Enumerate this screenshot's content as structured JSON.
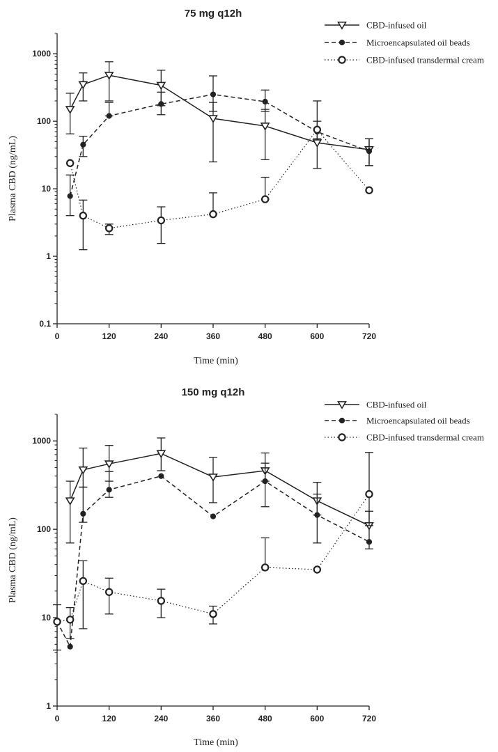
{
  "chart_data": [
    {
      "type": "line",
      "title": "75 mg q12h",
      "xlabel": "Time (min)",
      "ylabel": "Plasma CBD (ng/mL)",
      "yscale": "log",
      "xlim": [
        0,
        720
      ],
      "ylim": [
        0.1,
        2000
      ],
      "xticks": [
        0,
        120,
        240,
        360,
        480,
        600,
        720
      ],
      "yticks": [
        0.1,
        1,
        10,
        100,
        1000
      ],
      "ytick_labels": [
        "0.1",
        "1",
        "10",
        "100",
        "1000"
      ],
      "xtick_labels": [
        "0",
        "120",
        "240",
        "360",
        "480",
        "600",
        "720"
      ],
      "legend_position": "top-right",
      "series": [
        {
          "name": "CBD-infused oil",
          "marker": "open-triangle-down",
          "line": "solid",
          "x": [
            30,
            60,
            120,
            240,
            360,
            480,
            600,
            720
          ],
          "y": [
            150,
            350,
            480,
            340,
            110,
            85,
            48,
            38
          ],
          "err_low": [
            65,
            200,
            200,
            170,
            25,
            27,
            20,
            22
          ],
          "err_high": [
            260,
            520,
            760,
            570,
            190,
            150,
            100,
            55
          ]
        },
        {
          "name": "Microencapsulated oil beads",
          "marker": "filled-circle",
          "line": "dashed",
          "x": [
            30,
            60,
            120,
            240,
            360,
            480,
            600,
            720
          ],
          "y": [
            7.8,
            45,
            120,
            180,
            250,
            195,
            70,
            36
          ],
          "err_low": [
            4,
            30,
            120,
            125,
            140,
            140,
            55,
            22
          ],
          "err_high": [
            16,
            60,
            190,
            270,
            470,
            290,
            200,
            55
          ]
        },
        {
          "name": "CBD-infused transdermal cream",
          "marker": "open-circle",
          "line": "dotted",
          "x": [
            30,
            60,
            120,
            240,
            360,
            480,
            600,
            720
          ],
          "y": [
            24,
            4.0,
            2.6,
            3.4,
            4.2,
            7.0,
            75,
            9.5
          ],
          "err_low": [
            24,
            1.25,
            2.1,
            1.55,
            4.2,
            7.0,
            75,
            9.5
          ],
          "err_high": [
            24,
            6.8,
            3.0,
            5.4,
            8.7,
            14.8,
            75,
            9.5
          ]
        }
      ]
    },
    {
      "type": "line",
      "title": "150 mg q12h",
      "xlabel": "Time (min)",
      "ylabel": "Plasma CBD (ng/mL)",
      "yscale": "log",
      "xlim": [
        0,
        720
      ],
      "ylim": [
        1,
        2000
      ],
      "xticks": [
        0,
        120,
        240,
        360,
        480,
        600,
        720
      ],
      "yticks": [
        1,
        10,
        100,
        1000
      ],
      "ytick_labels": [
        "1",
        "10",
        "100",
        "1000"
      ],
      "xtick_labels": [
        "0",
        "120",
        "240",
        "360",
        "480",
        "600",
        "720"
      ],
      "legend_position": "top-right",
      "series": [
        {
          "name": "CBD-infused oil",
          "marker": "open-triangle-down",
          "line": "solid",
          "x": [
            30,
            60,
            120,
            240,
            360,
            480,
            600,
            720
          ],
          "y": [
            210,
            470,
            550,
            720,
            390,
            460,
            210,
            110
          ],
          "err_low": [
            70,
            300,
            350,
            460,
            200,
            180,
            70,
            60
          ],
          "err_high": [
            350,
            830,
            890,
            1080,
            650,
            730,
            340,
            160
          ]
        },
        {
          "name": "Microencapsulated oil beads",
          "marker": "filled-circle",
          "line": "dashed",
          "x": [
            0,
            30,
            60,
            120,
            240,
            360,
            480,
            600,
            720
          ],
          "y": [
            9,
            4.7,
            150,
            280,
            400,
            140,
            350,
            145,
            72
          ],
          "err_low": [
            4.3,
            4.7,
            120,
            230,
            400,
            140,
            350,
            145,
            72
          ],
          "err_high": [
            14,
            4.7,
            300,
            450,
            400,
            140,
            560,
            250,
            72
          ]
        },
        {
          "name": "CBD-infused transdermal cream",
          "marker": "open-circle",
          "line": "dotted",
          "x": [
            0,
            30,
            60,
            120,
            240,
            360,
            480,
            600,
            720
          ],
          "y": [
            9,
            9.5,
            26,
            19.5,
            15.5,
            11,
            37,
            35,
            250
          ],
          "err_low": [
            9,
            5.8,
            7.5,
            11,
            10,
            8.5,
            37,
            35,
            110
          ],
          "err_high": [
            9,
            13,
            44,
            28,
            21,
            13.5,
            80,
            35,
            740
          ]
        }
      ]
    }
  ]
}
